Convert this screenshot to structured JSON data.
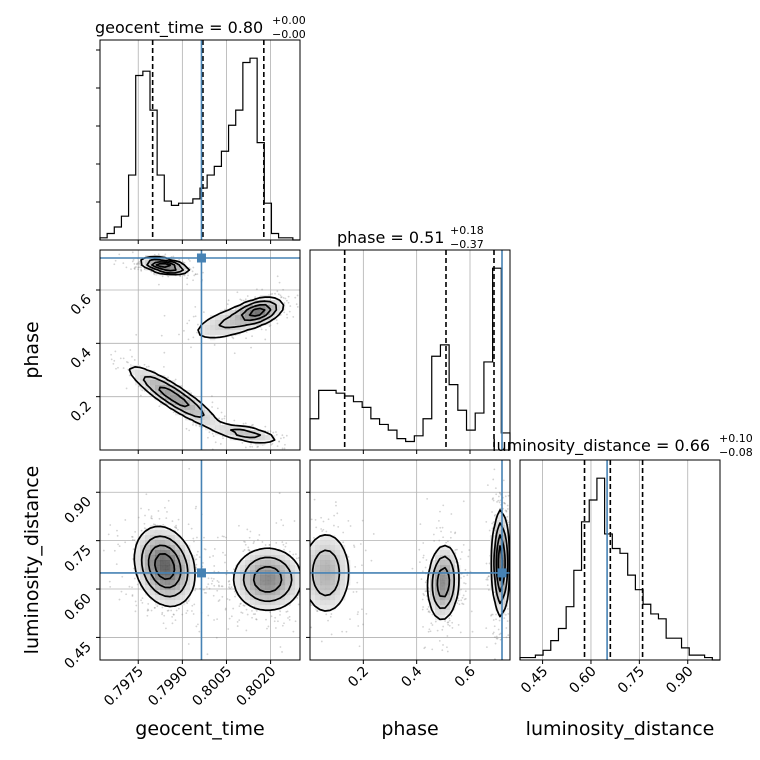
{
  "chart_data": {
    "type": "corner",
    "colors": {
      "truth": "#4682b4",
      "line": "#000000",
      "grid": "#b0b0b0",
      "points": "#808080"
    },
    "parameters": [
      {
        "name": "geocent_time",
        "label": "geocent_time",
        "range": [
          0.7962,
          0.803
        ],
        "ticks": [
          0.7975,
          0.799,
          0.8005,
          0.802
        ],
        "tick_labels": [
          "0.7975",
          "0.7990",
          "0.8005",
          "0.8020"
        ],
        "truth": 0.79965,
        "quantiles": [
          0.79799,
          0.7997,
          0.80177
        ],
        "title_main": "geocent_time = 0.80",
        "title_plus": "+0.00",
        "title_minus": "−0.00"
      },
      {
        "name": "phase",
        "label": "phase",
        "range": [
          0.0,
          0.75
        ],
        "ticks": [
          0.2,
          0.4,
          0.6
        ],
        "tick_labels": [
          "0.2",
          "0.4",
          "0.6"
        ],
        "truth": 0.72,
        "quantiles": [
          0.13,
          0.51,
          0.69
        ],
        "title_main": "phase = 0.51",
        "title_plus": "+0.18",
        "title_minus": "−0.37"
      },
      {
        "name": "luminosity_distance",
        "label": "luminosity_distance",
        "range": [
          0.38,
          1.0
        ],
        "ticks": [
          0.45,
          0.6,
          0.75,
          0.9
        ],
        "tick_labels": [
          "0.45",
          "0.60",
          "0.75",
          "0.90"
        ],
        "truth": 0.65,
        "quantiles": [
          0.58,
          0.66,
          0.76
        ],
        "title_main": "luminosity_distance = 0.66",
        "title_plus": "+0.10",
        "title_minus": "−0.08"
      }
    ],
    "histograms": [
      {
        "param": 0,
        "counts": [
          1,
          3,
          6,
          11,
          30,
          76,
          78,
          60,
          30,
          18,
          16,
          17,
          17,
          19,
          24,
          30,
          34,
          41,
          53,
          60,
          82,
          84,
          45,
          17,
          3,
          1,
          1,
          0
        ]
      },
      {
        "param": 1,
        "counts": [
          11,
          21,
          21,
          20,
          19,
          17,
          15,
          11,
          9,
          7,
          4,
          3,
          5,
          11,
          33,
          37,
          23,
          14,
          7,
          13,
          31,
          64,
          6
        ]
      },
      {
        "param": 2,
        "counts": [
          1,
          1,
          2,
          4,
          8,
          13,
          22,
          37,
          57,
          66,
          75,
          52,
          46,
          44,
          35,
          29,
          23,
          19,
          17,
          9,
          9,
          5,
          2,
          2,
          1,
          0
        ]
      }
    ],
    "joint_modes": [
      {
        "pair": [
          0,
          1
        ],
        "modes": [
          {
            "x": 0.7984,
            "y": 0.69,
            "sx": 0.0004,
            "sy": 0.015,
            "rho": -0.5,
            "w": 0.3
          },
          {
            "x": 0.8016,
            "y": 0.52,
            "sx": 0.0004,
            "sy": 0.025,
            "rho": 0.4,
            "w": 0.22
          },
          {
            "x": 0.8007,
            "y": 0.48,
            "sx": 0.0008,
            "sy": 0.04,
            "rho": 0.6,
            "w": 0.1
          },
          {
            "x": 0.7987,
            "y": 0.2,
            "sx": 0.0008,
            "sy": 0.06,
            "rho": -0.9,
            "w": 0.2
          },
          {
            "x": 0.8012,
            "y": 0.06,
            "sx": 0.0006,
            "sy": 0.02,
            "rho": -0.6,
            "w": 0.12
          }
        ]
      },
      {
        "pair": [
          0,
          2
        ],
        "modes": [
          {
            "x": 0.7984,
            "y": 0.67,
            "sx": 0.0005,
            "sy": 0.06,
            "rho": -0.2,
            "w": 0.48
          },
          {
            "x": 0.8019,
            "y": 0.63,
            "sx": 0.0006,
            "sy": 0.05,
            "rho": 0.0,
            "w": 0.36
          }
        ]
      },
      {
        "pair": [
          1,
          2
        ],
        "modes": [
          {
            "x": 0.06,
            "y": 0.65,
            "sx": 0.05,
            "sy": 0.07,
            "rho": 0.0,
            "w": 0.22
          },
          {
            "x": 0.5,
            "y": 0.62,
            "sx": 0.03,
            "sy": 0.06,
            "rho": 0.1,
            "w": 0.33
          },
          {
            "x": 0.715,
            "y": 0.68,
            "sx": 0.015,
            "sy": 0.08,
            "rho": 0.0,
            "w": 0.45
          }
        ]
      }
    ],
    "contour_levels": [
      0.12,
      0.3,
      0.55,
      0.8
    ]
  }
}
